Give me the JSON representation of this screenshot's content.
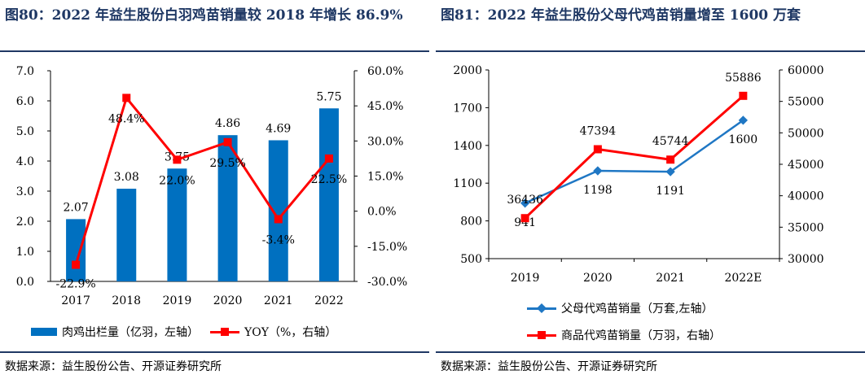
{
  "left": {
    "title": "图80：2022 年益生股份白羽鸡苗销量较 2018 年增长 86.9%",
    "source": "数据来源：益生股份公告、开源证券研究所",
    "legend": {
      "bar": "肉鸡出栏量（亿羽，左轴）",
      "line": "YOY（%，右轴）"
    },
    "colors": {
      "bar": "#0070c0",
      "line": "#ff0000"
    },
    "chart_data": {
      "type": "bar+line",
      "categories": [
        "2017",
        "2018",
        "2019",
        "2020",
        "2021",
        "2022"
      ],
      "series": [
        {
          "name": "肉鸡出栏量（亿羽，左轴）",
          "type": "bar",
          "axis": "left",
          "values": [
            2.07,
            3.08,
            3.75,
            4.86,
            4.69,
            5.75
          ],
          "labels": [
            "2.07",
            "3.08",
            "3.75",
            "4.86",
            "4.69",
            "5.75"
          ]
        },
        {
          "name": "YOY（%，右轴）",
          "type": "line",
          "axis": "right",
          "values": [
            -22.9,
            48.4,
            22.0,
            29.5,
            -3.4,
            22.5
          ],
          "labels": [
            "-22.9%",
            "48.4%",
            "22.0%",
            "29.5%",
            "-3.4%",
            "22.5%"
          ]
        }
      ],
      "y_left": {
        "min": 0,
        "max": 7,
        "ticks": [
          "0.0",
          "1.0",
          "2.0",
          "3.0",
          "4.0",
          "5.0",
          "6.0",
          "7.0"
        ]
      },
      "y_right": {
        "min": -30,
        "max": 60,
        "ticks": [
          "-30.0%",
          "-15.0%",
          "0.0%",
          "15.0%",
          "30.0%",
          "45.0%",
          "60.0%"
        ]
      },
      "grid": false,
      "legend_position": "bottom"
    }
  },
  "right": {
    "title": "图81：2022 年益生股份父母代鸡苗销量增至 1600 万套",
    "source": "数据来源：益生股份公告、开源证券研究所",
    "legend": {
      "blue": "父母代鸡苗销量（万套,左轴）",
      "red": "商品代鸡苗销量（万羽，右轴）"
    },
    "colors": {
      "blue": "#1f77c4",
      "red": "#ff0000"
    },
    "chart_data": {
      "type": "line",
      "categories": [
        "2019",
        "2020",
        "2021",
        "2022E"
      ],
      "series": [
        {
          "name": "父母代鸡苗销量（万套,左轴）",
          "axis": "left",
          "values": [
            941,
            1198,
            1191,
            1600
          ],
          "labels": [
            "941",
            "1198",
            "1191",
            "1600"
          ]
        },
        {
          "name": "商品代鸡苗销量（万羽，右轴）",
          "axis": "right",
          "values": [
            36436,
            47394,
            45744,
            55886
          ],
          "labels": [
            "36436",
            "47394",
            "45744",
            "55886"
          ]
        }
      ],
      "y_left": {
        "min": 500,
        "max": 2000,
        "ticks": [
          "500",
          "800",
          "1100",
          "1400",
          "1700",
          "2000"
        ]
      },
      "y_right": {
        "min": 30000,
        "max": 60000,
        "ticks": [
          "30000",
          "35000",
          "40000",
          "45000",
          "50000",
          "55000",
          "60000"
        ]
      },
      "grid": false,
      "legend_position": "bottom"
    }
  }
}
